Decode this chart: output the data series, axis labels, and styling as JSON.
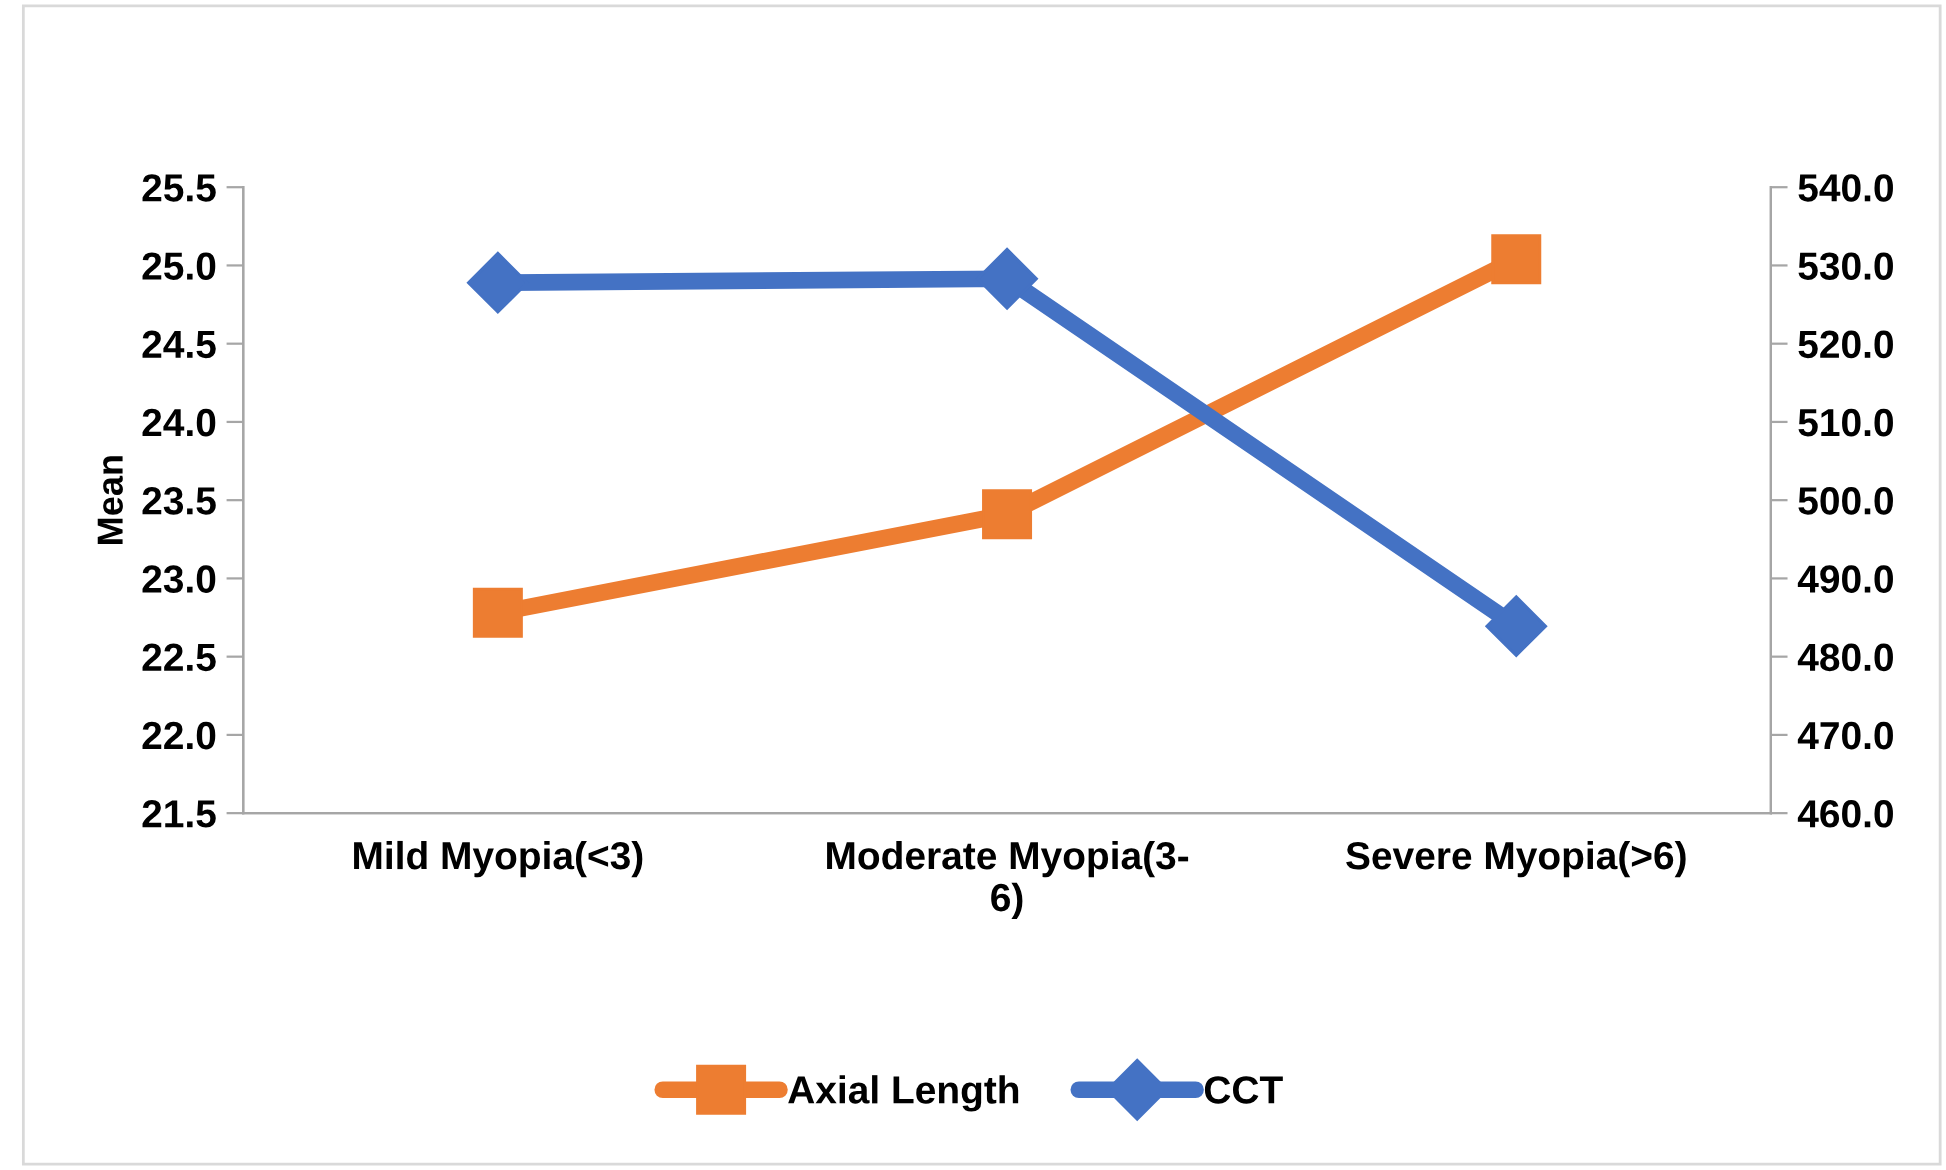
{
  "chart_data": {
    "type": "line",
    "ylabel": "Mean",
    "categories": [
      "Mild Myopia(<3)",
      "Moderate Myopia(3-\n6)",
      "Severe Myopia(>6)"
    ],
    "series": [
      {
        "name": "Axial Length",
        "color": "#ed7d31",
        "values": [
          22.78,
          23.41,
          25.04
        ],
        "marker": "square"
      },
      {
        "name": "CCT",
        "color": "#4472c4",
        "values": [
          527.8,
          528.3,
          483.9
        ],
        "axis": "y2",
        "marker": "diamond"
      }
    ],
    "ylim": [
      21.5,
      25.5
    ],
    "yticks": [
      {
        "value": 21.5,
        "label": "21.5"
      },
      {
        "value": 22,
        "label": "22.0"
      },
      {
        "value": 22.5,
        "label": "22.5"
      },
      {
        "value": 23,
        "label": "23.0"
      },
      {
        "value": 23.5,
        "label": "23.5"
      },
      {
        "value": 24,
        "label": "24.0"
      },
      {
        "value": 24.5,
        "label": "24.5"
      },
      {
        "value": 25,
        "label": "25.0"
      },
      {
        "value": 25.5,
        "label": "25.5"
      }
    ],
    "y2lim": [
      460,
      540
    ],
    "y2ticks": [
      {
        "value": 460,
        "label": "460.0"
      },
      {
        "value": 470,
        "label": "470.0"
      },
      {
        "value": 480,
        "label": "480.0"
      },
      {
        "value": 490,
        "label": "490.0"
      },
      {
        "value": 500,
        "label": "500.0"
      },
      {
        "value": 510,
        "label": "510.0"
      },
      {
        "value": 520,
        "label": "520.0"
      },
      {
        "value": 530,
        "label": "530.0"
      },
      {
        "value": 540,
        "label": "540.0"
      }
    ],
    "grid": false,
    "legend": "bottom",
    "line_style": "solid"
  }
}
